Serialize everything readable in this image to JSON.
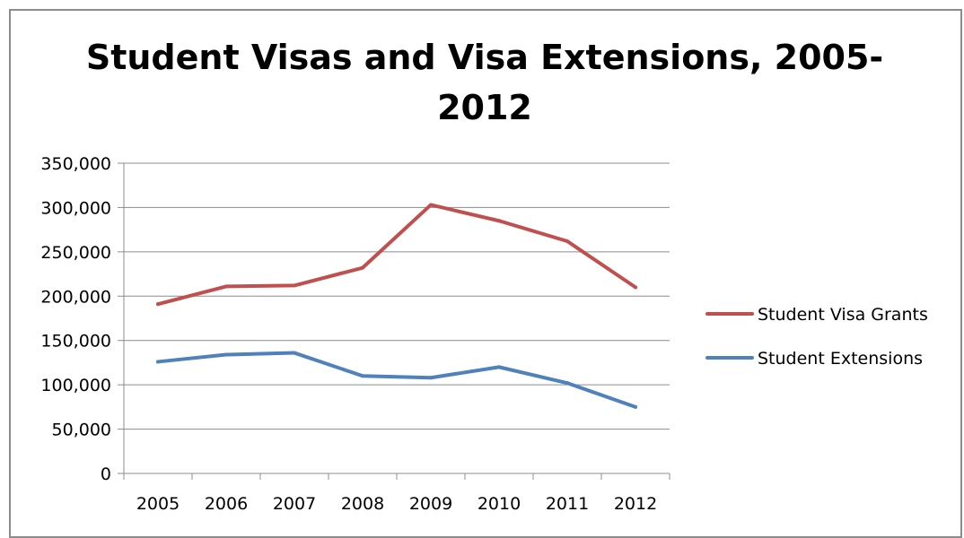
{
  "chart_data": {
    "type": "line",
    "title": "Student Visas and Visa Extensions, 2005-2012",
    "title_lines": [
      "Student Visas and Visa Extensions, 2005-",
      "2012"
    ],
    "xlabel": "",
    "ylabel": "",
    "categories": [
      "2005",
      "2006",
      "2007",
      "2008",
      "2009",
      "2010",
      "2011",
      "2012"
    ],
    "ylim": [
      0,
      350000
    ],
    "ytick_values": [
      0,
      50000,
      100000,
      150000,
      200000,
      250000,
      300000,
      350000
    ],
    "ytick_labels": [
      "0",
      "50,000",
      "100,000",
      "150,000",
      "200,000",
      "250,000",
      "300,000",
      "350,000"
    ],
    "grid": true,
    "legend_position": "right",
    "series": [
      {
        "name": "Student Visa Grants",
        "color": "#c0504d",
        "values": [
          191000,
          211000,
          212000,
          232000,
          303000,
          285000,
          262000,
          210000
        ]
      },
      {
        "name": "Student Extensions",
        "color": "#4f81bd",
        "values": [
          126000,
          134000,
          136000,
          110000,
          108000,
          120000,
          102000,
          75000
        ]
      }
    ]
  }
}
